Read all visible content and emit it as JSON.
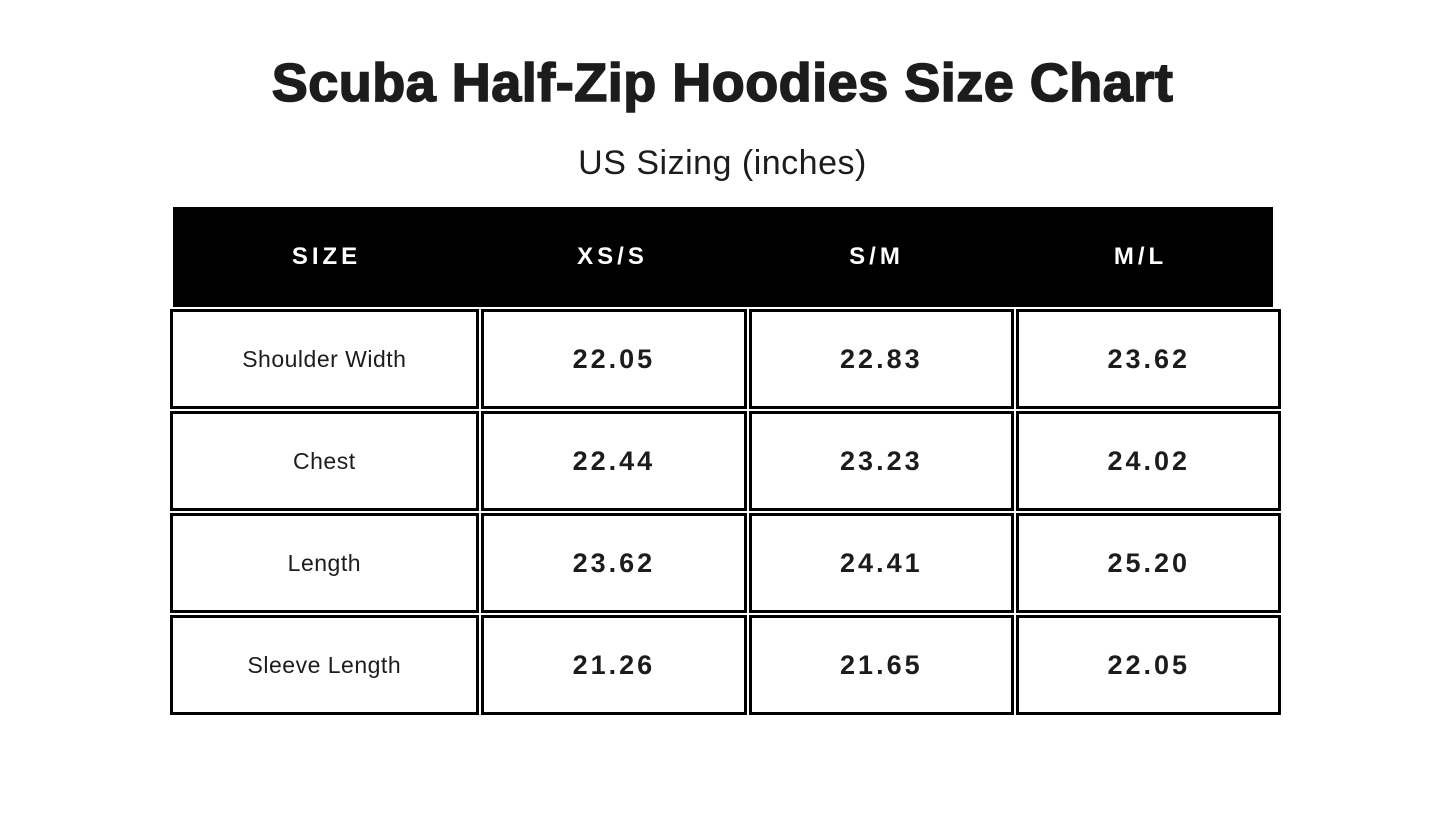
{
  "page": {
    "title": "Scuba Half-Zip Hoodies Size Chart",
    "subtitle": "US Sizing (inches)"
  },
  "table": {
    "headers": [
      "SIZE",
      "XS/S",
      "S/M",
      "M/L"
    ],
    "rows": [
      {
        "label": "Shoulder Width",
        "values": [
          "22.05",
          "22.83",
          "23.62"
        ]
      },
      {
        "label": "Chest",
        "values": [
          "22.44",
          "23.23",
          "24.02"
        ]
      },
      {
        "label": "Length",
        "values": [
          "23.62",
          "24.41",
          "25.20"
        ]
      },
      {
        "label": "Sleeve Length",
        "values": [
          "21.26",
          "21.65",
          "22.05"
        ]
      }
    ]
  },
  "chart_data": {
    "type": "table",
    "title": "Scuba Half-Zip Hoodies Size Chart",
    "subtitle": "US Sizing (inches)",
    "units": "inches",
    "columns": [
      "SIZE",
      "XS/S",
      "S/M",
      "M/L"
    ],
    "rows": [
      [
        "Shoulder Width",
        22.05,
        22.83,
        23.62
      ],
      [
        "Chest",
        22.44,
        23.23,
        24.02
      ],
      [
        "Length",
        23.62,
        24.41,
        25.2
      ],
      [
        "Sleeve Length",
        21.26,
        21.65,
        22.05
      ]
    ]
  },
  "colors": {
    "background": "#ffffff",
    "header_background": "#000000",
    "header_text": "#ffffff",
    "border": "#000000",
    "text": "#1c1c1c"
  }
}
